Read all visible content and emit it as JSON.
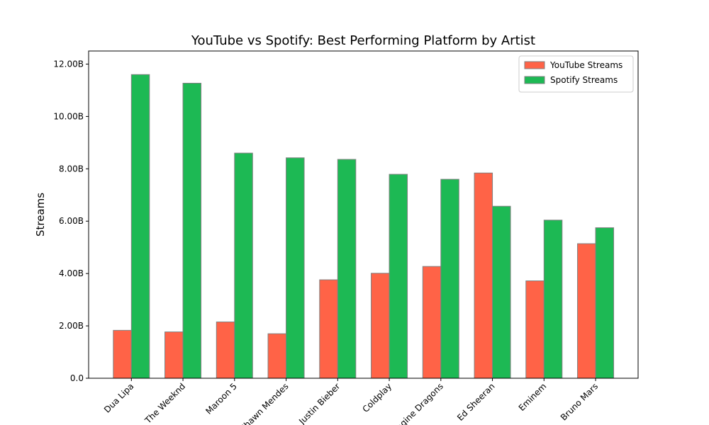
{
  "chart_data": {
    "type": "bar",
    "title": "YouTube vs Spotify: Best Performing Platform by Artist",
    "xlabel": "",
    "ylabel": "Streams",
    "ylim": [
      0,
      12.5
    ],
    "y_unit_suffix": "B",
    "yticks": [
      0,
      2,
      4,
      6,
      8,
      10,
      12
    ],
    "ytick_labels": [
      "0.0",
      "2.00B",
      "4.00B",
      "6.00B",
      "8.00B",
      "10.00B",
      "12.00B"
    ],
    "categories": [
      "Dua Lipa",
      "The Weeknd",
      "Maroon 5",
      "Shawn Mendes",
      "Justin Bieber",
      "Coldplay",
      "Imagine Dragons",
      "Ed Sheeran",
      "Eminem",
      "Bruno Mars"
    ],
    "series": [
      {
        "name": "YouTube Streams",
        "color": "#ff6347",
        "values": [
          1.83,
          1.77,
          2.15,
          1.7,
          3.76,
          4.01,
          4.27,
          7.84,
          3.72,
          5.14
        ]
      },
      {
        "name": "Spotify Streams",
        "color": "#1db954",
        "values": [
          11.6,
          11.27,
          8.6,
          8.42,
          8.36,
          7.79,
          7.6,
          6.57,
          6.04,
          5.75
        ]
      }
    ],
    "legend_position": "top-right",
    "grid": false,
    "bar_edge_color": "#808080"
  }
}
